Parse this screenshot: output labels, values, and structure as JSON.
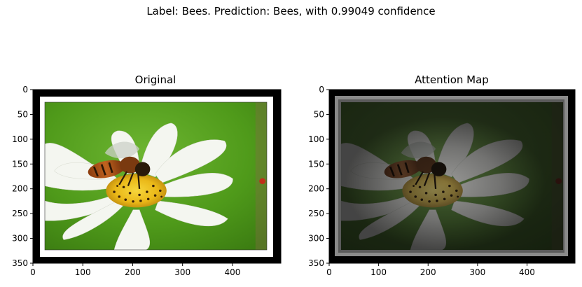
{
  "suptitle": "Label: Bees. Prediction: Bees, with 0.99049 confidence",
  "panels": [
    {
      "title": "Original",
      "xticks": [
        "0",
        "100",
        "200",
        "300",
        "400"
      ],
      "yticks": [
        "0",
        "50",
        "100",
        "150",
        "200",
        "250",
        "300",
        "350"
      ]
    },
    {
      "title": "Attention Map",
      "xticks": [
        "0",
        "100",
        "200",
        "300",
        "400"
      ],
      "yticks": [
        "0",
        "50",
        "100",
        "150",
        "200",
        "250",
        "300",
        "350"
      ]
    }
  ],
  "colors": {
    "frame": "#000000",
    "mat": "#ffffff",
    "background_green": "#4f9a1a",
    "petal": "#f4f6f0",
    "bee_body": "#b0561a",
    "pollen": "#f0c020"
  }
}
